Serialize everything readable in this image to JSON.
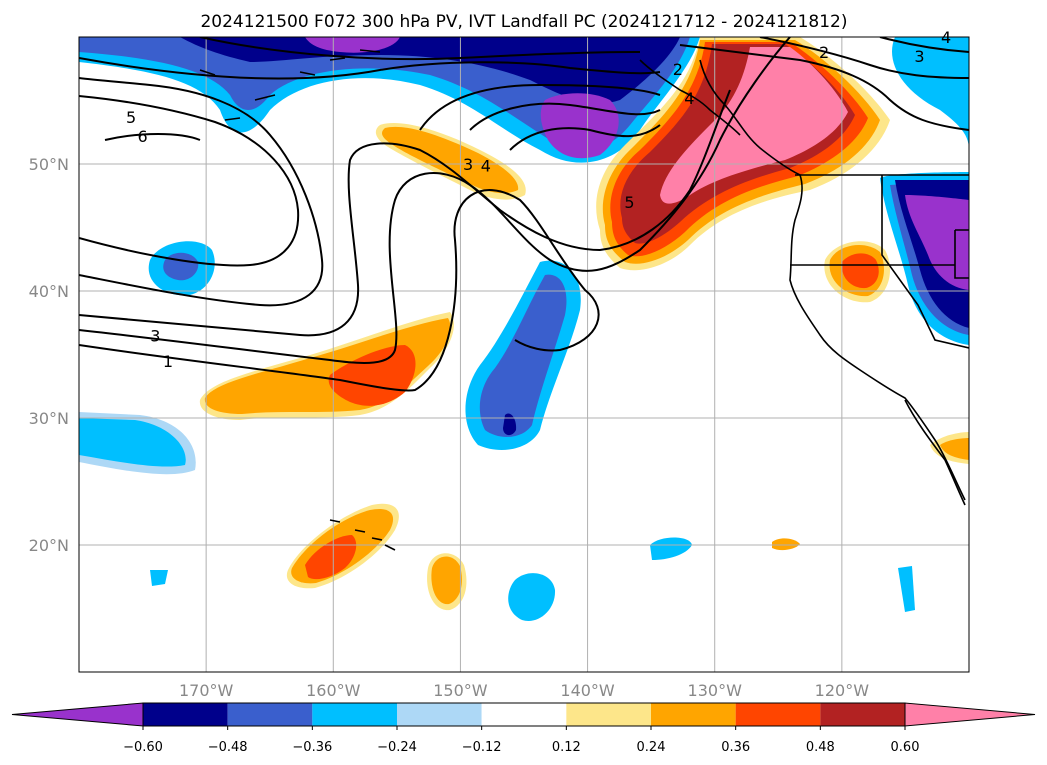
{
  "title": "2024121500 F072 300 hPa PV, IVT Landfall PC (2024121712 - 2024121812)",
  "map": {
    "lon_range": [
      -180,
      -110
    ],
    "lat_range": [
      10,
      60
    ],
    "lat_ticks": [
      {
        "value": 20,
        "label": "20°N"
      },
      {
        "value": 30,
        "label": "30°N"
      },
      {
        "value": 40,
        "label": "40°N"
      },
      {
        "value": 50,
        "label": "50°N"
      }
    ],
    "lon_ticks": [
      {
        "value": -170,
        "label": "170°W"
      },
      {
        "value": -160,
        "label": "160°W"
      },
      {
        "value": -150,
        "label": "150°W"
      },
      {
        "value": -140,
        "label": "140°W"
      },
      {
        "value": -130,
        "label": "130°W"
      },
      {
        "value": -120,
        "label": "120°W"
      }
    ],
    "grid": true
  },
  "colorbar": {
    "placement": "bottom",
    "extend": "both",
    "boundaries": [
      -0.6,
      -0.48,
      -0.36,
      -0.24,
      -0.12,
      0.12,
      0.24,
      0.36,
      0.48,
      0.6
    ],
    "tick_labels": [
      "−0.60",
      "−0.48",
      "−0.36",
      "−0.24",
      "−0.12",
      "0.12",
      "0.24",
      "0.36",
      "0.48",
      "0.60"
    ],
    "colors": [
      "#9932cc",
      "#00008b",
      "#3a5fcd",
      "#00bfff",
      "#add8f6",
      "#ffffff",
      "#fde68a",
      "#ffa500",
      "#ff4500",
      "#b22222",
      "#ff80a8"
    ]
  },
  "pv_contour_labels": [
    {
      "text": "5",
      "lon": -175.9,
      "lat": 53.7
    },
    {
      "text": "6",
      "lon": -175.0,
      "lat": 52.2
    },
    {
      "text": "3",
      "lon": -174.0,
      "lat": 36.5
    },
    {
      "text": "1",
      "lon": -173.0,
      "lat": 34.5
    },
    {
      "text": "3",
      "lon": -149.4,
      "lat": 50.0
    },
    {
      "text": "4",
      "lon": -148.0,
      "lat": 49.9
    },
    {
      "text": "5",
      "lon": -136.7,
      "lat": 47.0
    },
    {
      "text": "2",
      "lon": -132.9,
      "lat": 57.5
    },
    {
      "text": "4",
      "lon": -132.0,
      "lat": 55.2
    },
    {
      "text": "2",
      "lon": -121.4,
      "lat": 58.8
    },
    {
      "text": "3",
      "lon": -113.9,
      "lat": 58.5
    },
    {
      "text": "4",
      "lon": -111.8,
      "lat": 60.0
    }
  ]
}
